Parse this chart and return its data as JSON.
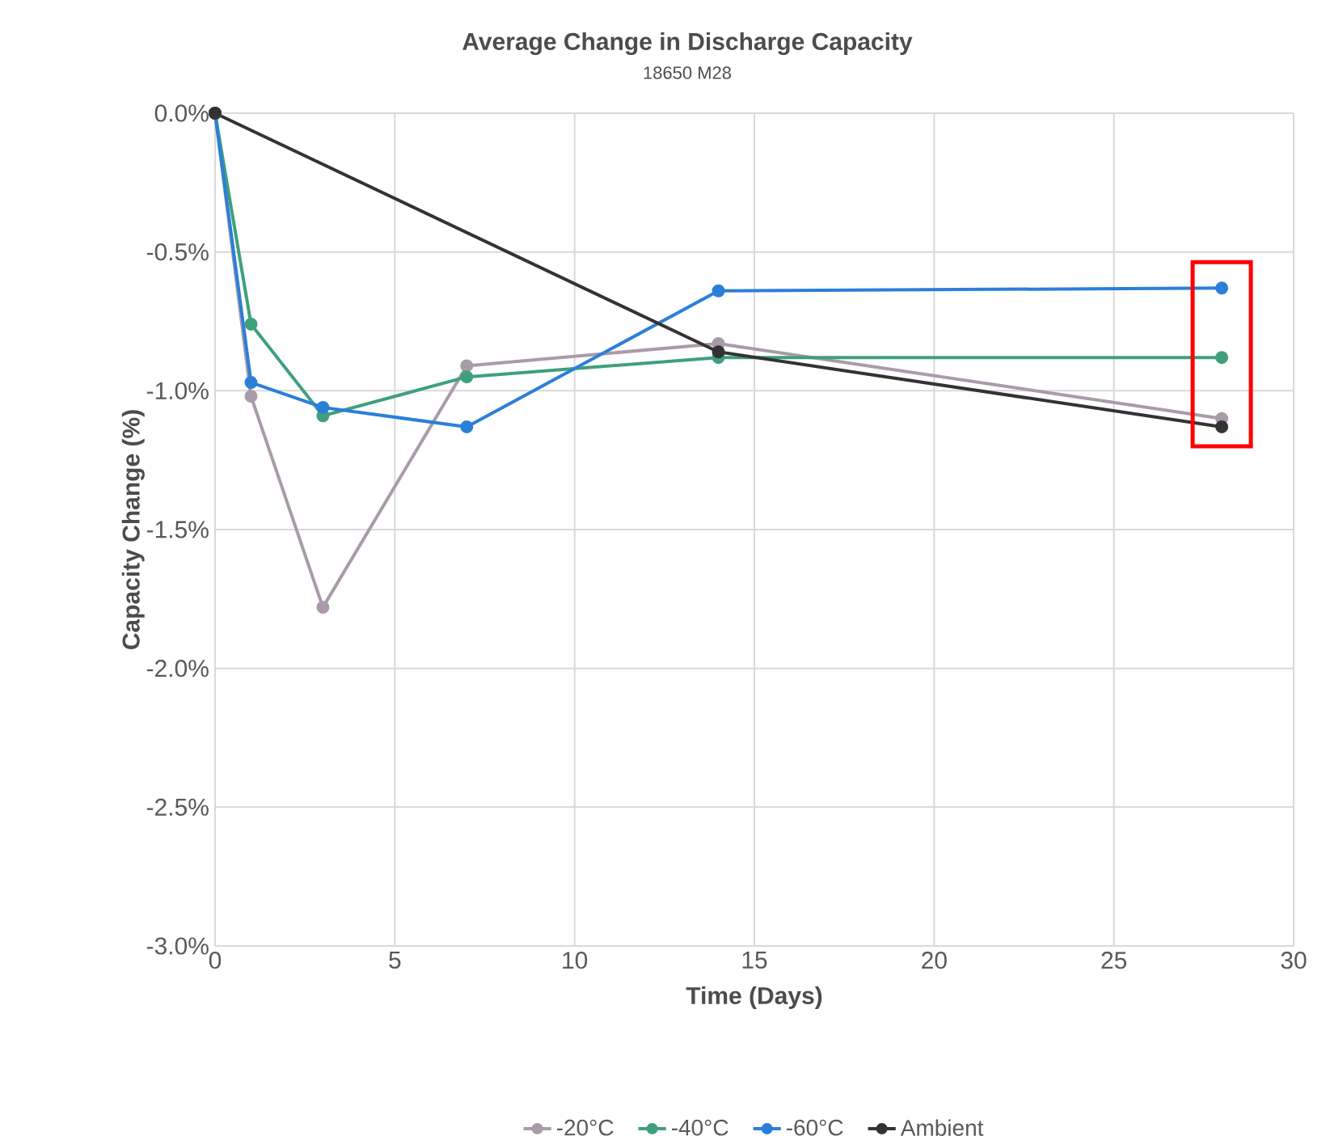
{
  "chart_data": {
    "type": "line",
    "title": "Average Change in Discharge Capacity",
    "subtitle": "18650 M28",
    "xlabel": "Time (Days)",
    "ylabel": "Capacity Change (%)",
    "xlim": [
      0,
      30
    ],
    "xticks": [
      0,
      5,
      10,
      15,
      20,
      25,
      30
    ],
    "ylim": [
      -3.0,
      0.0
    ],
    "yticks": [
      {
        "value": 0.0,
        "label": "0.0%"
      },
      {
        "value": -0.5,
        "label": "-0.5%"
      },
      {
        "value": -1.0,
        "label": "-1.0%"
      },
      {
        "value": -1.5,
        "label": "-1.5%"
      },
      {
        "value": -2.0,
        "label": "-2.0%"
      },
      {
        "value": -2.5,
        "label": "-2.5%"
      },
      {
        "value": -3.0,
        "label": "-3.0%"
      }
    ],
    "grid": true,
    "legend": "bottom",
    "marker": "circle",
    "line_style": "solid",
    "series": [
      {
        "name": "-20°C",
        "color": "#a99ba9",
        "x": [
          0,
          1,
          3,
          7,
          14,
          28
        ],
        "values": [
          0,
          -1.02,
          -1.78,
          -0.91,
          -0.83,
          -1.1
        ]
      },
      {
        "name": "-40°C",
        "color": "#3fa07c",
        "x": [
          0,
          1,
          3,
          7,
          14,
          28
        ],
        "values": [
          0,
          -0.76,
          -1.09,
          -0.95,
          -0.88,
          -0.88
        ]
      },
      {
        "name": "-60°C",
        "color": "#2b7fd9",
        "x": [
          0,
          1,
          3,
          7,
          14,
          28
        ],
        "values": [
          0,
          -0.97,
          -1.06,
          -1.13,
          -0.64,
          -0.63
        ]
      },
      {
        "name": "Ambient",
        "color": "#333333",
        "x": [
          0,
          14,
          28
        ],
        "values": [
          0,
          -0.86,
          -1.13
        ]
      }
    ]
  }
}
